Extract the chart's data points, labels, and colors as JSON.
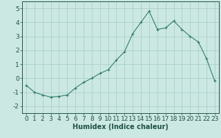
{
  "x": [
    0,
    1,
    2,
    3,
    4,
    5,
    6,
    7,
    8,
    9,
    10,
    11,
    12,
    13,
    14,
    15,
    16,
    17,
    18,
    19,
    20,
    21,
    22,
    23
  ],
  "y": [
    -0.5,
    -1.0,
    -1.2,
    -1.35,
    -1.3,
    -1.2,
    -0.7,
    -0.3,
    0.0,
    0.35,
    0.6,
    1.3,
    1.9,
    3.2,
    4.0,
    4.8,
    3.5,
    3.6,
    4.1,
    3.5,
    3.0,
    2.6,
    1.4,
    -0.2
  ],
  "line_color": "#2e7d6b",
  "marker": "+",
  "marker_size": 3,
  "marker_linewidth": 0.8,
  "bg_color": "#cce8e3",
  "grid_color": "#aacfc9",
  "xlabel": "Humidex (Indice chaleur)",
  "xlim": [
    -0.5,
    23.5
  ],
  "ylim": [
    -2.5,
    5.5
  ],
  "yticks": [
    -2,
    -1,
    0,
    1,
    2,
    3,
    4,
    5
  ],
  "xticks": [
    0,
    1,
    2,
    3,
    4,
    5,
    6,
    7,
    8,
    9,
    10,
    11,
    12,
    13,
    14,
    15,
    16,
    17,
    18,
    19,
    20,
    21,
    22,
    23
  ],
  "xtick_labels": [
    "0",
    "1",
    "2",
    "3",
    "4",
    "5",
    "6",
    "7",
    "8",
    "9",
    "10",
    "11",
    "12",
    "13",
    "14",
    "15",
    "16",
    "17",
    "18",
    "19",
    "20",
    "21",
    "22",
    "23"
  ],
  "font_color": "#1e5045",
  "xlabel_fontsize": 7,
  "tick_fontsize": 6.5,
  "linewidth": 0.8
}
